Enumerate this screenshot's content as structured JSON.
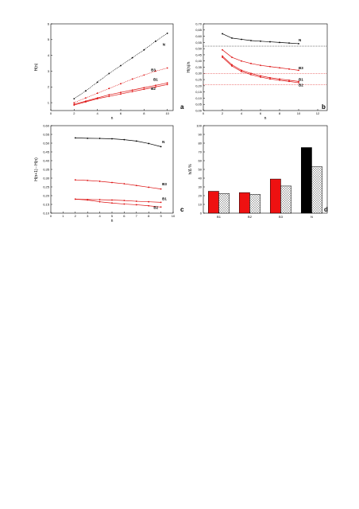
{
  "chart_data": [
    {
      "panel_letter": "a",
      "type": "line",
      "xlabel": "n",
      "ylabel": "H(n)",
      "xlim": [
        0,
        10.5
      ],
      "ylim": [
        0.5,
        6
      ],
      "xticks": [
        0,
        2,
        4,
        6,
        8,
        10
      ],
      "yticks": [
        1,
        2,
        3,
        4,
        5,
        6
      ],
      "series": [
        {
          "name": "N",
          "color": "#000000",
          "dash": "1,1",
          "x": [
            2,
            3,
            4,
            5,
            6,
            7,
            8,
            9,
            10
          ],
          "y": [
            1.25,
            1.75,
            2.3,
            2.85,
            3.35,
            3.85,
            4.35,
            4.9,
            5.4
          ]
        },
        {
          "name": "B3",
          "color": "#dd1111",
          "dash": "1,1",
          "x": [
            2,
            3,
            4,
            5,
            6,
            7,
            8,
            9,
            10
          ],
          "y": [
            1.0,
            1.3,
            1.6,
            1.9,
            2.2,
            2.5,
            2.75,
            3.0,
            3.2
          ]
        },
        {
          "name": "B1",
          "color": "#dd1111",
          "dash": "",
          "x": [
            2,
            3,
            4,
            5,
            6,
            7,
            8,
            9,
            10
          ],
          "y": [
            0.9,
            1.1,
            1.3,
            1.5,
            1.65,
            1.8,
            1.95,
            2.1,
            2.25
          ]
        },
        {
          "name": "B2",
          "color": "#dd1111",
          "dash": "",
          "x": [
            2,
            3,
            4,
            5,
            6,
            7,
            8,
            9,
            10
          ],
          "y": [
            0.85,
            1.05,
            1.25,
            1.4,
            1.55,
            1.7,
            1.85,
            2.0,
            2.15
          ]
        }
      ],
      "labels": [
        {
          "text": "N",
          "x": 9.6,
          "y": 4.6
        },
        {
          "text": "B3",
          "x": 8.6,
          "y": 3.0
        },
        {
          "text": "B1",
          "x": 8.8,
          "y": 2.4
        },
        {
          "text": "B2",
          "x": 8.6,
          "y": 1.8
        }
      ]
    },
    {
      "panel_letter": "b",
      "type": "line",
      "xlabel": "n",
      "ylabel": "H(n)/n",
      "xlim": [
        0,
        13
      ],
      "ylim": [
        0,
        0.7
      ],
      "xticks": [
        0,
        2,
        4,
        6,
        8,
        10,
        12
      ],
      "yticks": [
        0.0,
        0.05,
        0.1,
        0.15,
        0.2,
        0.25,
        0.3,
        0.35,
        0.4,
        0.45,
        0.5,
        0.55,
        0.6,
        0.65,
        0.7
      ],
      "ytick_labels": [
        "0,00",
        "0,05",
        "0,10",
        "0,15",
        "0,20",
        "0,25",
        "0,30",
        "0,35",
        "0,40",
        "0,45",
        "0,50",
        "0,55",
        "0,60",
        "0,65",
        "0,70"
      ],
      "hlines": [
        {
          "y": 0.52,
          "color": "#000000"
        },
        {
          "y": 0.3,
          "color": "#dd1111"
        },
        {
          "y": 0.21,
          "color": "#dd1111"
        }
      ],
      "series": [
        {
          "name": "N",
          "color": "#000000",
          "x": [
            2,
            3,
            4,
            5,
            6,
            7,
            8,
            9,
            10
          ],
          "y": [
            0.62,
            0.585,
            0.575,
            0.565,
            0.56,
            0.555,
            0.55,
            0.545,
            0.54
          ]
        },
        {
          "name": "B3",
          "color": "#dd1111",
          "x": [
            2,
            3,
            4,
            5,
            6,
            7,
            8,
            9,
            10
          ],
          "y": [
            0.49,
            0.43,
            0.4,
            0.38,
            0.365,
            0.355,
            0.345,
            0.335,
            0.325
          ]
        },
        {
          "name": "B1",
          "color": "#dd1111",
          "x": [
            2,
            3,
            4,
            5,
            6,
            7,
            8,
            9,
            10
          ],
          "y": [
            0.44,
            0.37,
            0.325,
            0.3,
            0.28,
            0.265,
            0.255,
            0.245,
            0.235
          ]
        },
        {
          "name": "B2",
          "color": "#dd1111",
          "x": [
            2,
            3,
            4,
            5,
            6,
            7,
            8,
            9,
            10
          ],
          "y": [
            0.43,
            0.36,
            0.315,
            0.29,
            0.27,
            0.255,
            0.245,
            0.235,
            0.225
          ]
        }
      ],
      "labels": [
        {
          "text": "N",
          "x": 10.0,
          "y": 0.56
        },
        {
          "text": "B3",
          "x": 10.0,
          "y": 0.335
        },
        {
          "text": "B1",
          "x": 10.0,
          "y": 0.24
        },
        {
          "text": "B2",
          "x": 10.0,
          "y": 0.195
        }
      ]
    },
    {
      "panel_letter": "c",
      "type": "line",
      "xlabel": "n",
      "ylabel": "H(n+1) - H(n)",
      "xlim": [
        0,
        10
      ],
      "ylim": [
        0.1,
        0.6
      ],
      "xticks": [
        0,
        1,
        2,
        3,
        4,
        5,
        6,
        7,
        8,
        9,
        10
      ],
      "yticks": [
        0.1,
        0.15,
        0.2,
        0.25,
        0.3,
        0.35,
        0.4,
        0.45,
        0.5,
        0.55,
        0.6
      ],
      "ytick_labels": [
        "0,10",
        "0,15",
        "0,20",
        "0,25",
        "0,30",
        "0,35",
        "0,40",
        "0,45",
        "0,50",
        "0,55",
        "0,60"
      ],
      "series": [
        {
          "name": "N",
          "color": "#000000",
          "x": [
            2,
            3,
            4,
            5,
            6,
            7,
            8,
            9
          ],
          "y": [
            0.53,
            0.528,
            0.527,
            0.525,
            0.52,
            0.512,
            0.498,
            0.48
          ]
        },
        {
          "name": "B3",
          "color": "#dd1111",
          "x": [
            2,
            3,
            4,
            5,
            6,
            7,
            8,
            9
          ],
          "y": [
            0.29,
            0.287,
            0.282,
            0.275,
            0.268,
            0.258,
            0.248,
            0.238
          ]
        },
        {
          "name": "B1",
          "color": "#dd1111",
          "x": [
            2,
            3,
            4,
            5,
            6,
            7,
            8,
            9
          ],
          "y": [
            0.18,
            0.178,
            0.177,
            0.175,
            0.172,
            0.168,
            0.165,
            0.162
          ]
        },
        {
          "name": "B2",
          "color": "#dd1111",
          "x": [
            2,
            3,
            4,
            5,
            6,
            7,
            8,
            9
          ],
          "y": [
            0.18,
            0.175,
            0.165,
            0.158,
            0.152,
            0.148,
            0.142,
            0.135
          ]
        }
      ],
      "labels": [
        {
          "text": "N",
          "x": 9.1,
          "y": 0.5
        },
        {
          "text": "B3",
          "x": 9.1,
          "y": 0.26
        },
        {
          "text": "B1",
          "x": 9.1,
          "y": 0.175
        },
        {
          "text": "B2",
          "x": 8.4,
          "y": 0.125
        }
      ]
    },
    {
      "panel_letter": "d",
      "type": "bar",
      "ylabel": "h/Δ %",
      "ylim": [
        0,
        100
      ],
      "yticks": [
        0,
        10,
        20,
        30,
        40,
        50,
        60,
        70,
        80,
        90,
        100
      ],
      "categories": [
        "B1",
        "B2",
        "B3",
        "N"
      ],
      "series": [
        {
          "color": "#ee1111",
          "values": [
            25,
            23.5,
            39,
            75
          ]
        },
        {
          "color": "#ffffff",
          "values": [
            22.5,
            21.5,
            31,
            53
          ],
          "pattern": "crosshatch"
        }
      ],
      "solid_color_N": "#000000"
    }
  ]
}
